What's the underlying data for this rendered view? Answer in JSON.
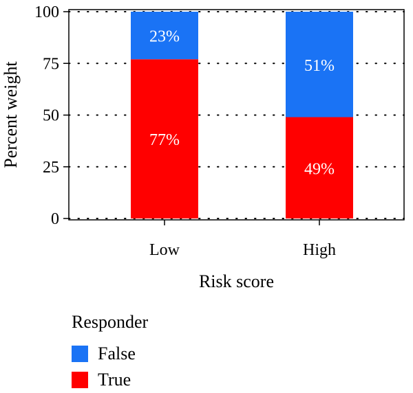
{
  "chart_data": {
    "type": "bar",
    "stacked": true,
    "categories": [
      "Low",
      "High"
    ],
    "series": [
      {
        "name": "True",
        "values": [
          77,
          49
        ],
        "labels": [
          "77%",
          "49%"
        ],
        "color": "#ff0000"
      },
      {
        "name": "False",
        "values": [
          23,
          51
        ],
        "labels": [
          "23%",
          "51%"
        ],
        "color": "#1a73f5"
      }
    ],
    "xlabel": "Risk score",
    "ylabel": "Percent weight",
    "ylim": [
      0,
      100
    ],
    "yticks": [
      0,
      25,
      50,
      75,
      100
    ],
    "grid": "dotted horizontal",
    "legend": {
      "title": "Responder",
      "placement": "bottom-left",
      "entries": [
        {
          "label": "False",
          "color": "#1a73f5"
        },
        {
          "label": "True",
          "color": "#ff0000"
        }
      ]
    }
  }
}
